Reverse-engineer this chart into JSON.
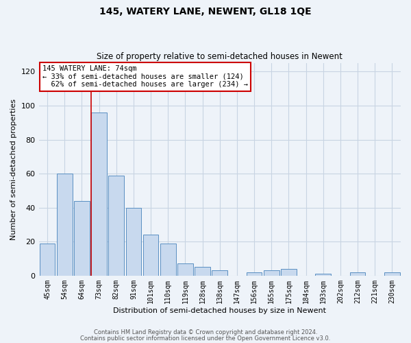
{
  "title": "145, WATERY LANE, NEWENT, GL18 1QE",
  "subtitle": "Size of property relative to semi-detached houses in Newent",
  "xlabel": "Distribution of semi-detached houses by size in Newent",
  "ylabel": "Number of semi-detached properties",
  "bin_labels": [
    "45sqm",
    "54sqm",
    "64sqm",
    "73sqm",
    "82sqm",
    "91sqm",
    "101sqm",
    "110sqm",
    "119sqm",
    "128sqm",
    "138sqm",
    "147sqm",
    "156sqm",
    "165sqm",
    "175sqm",
    "184sqm",
    "193sqm",
    "202sqm",
    "212sqm",
    "221sqm",
    "230sqm"
  ],
  "bin_values": [
    19,
    60,
    44,
    96,
    59,
    40,
    24,
    19,
    7,
    5,
    3,
    0,
    2,
    3,
    4,
    0,
    1,
    0,
    2,
    0,
    2
  ],
  "bar_color": "#c8d9ee",
  "bar_edge_color": "#5a8fc2",
  "vline_bin_index": 3,
  "highlight_label": "145 WATERY LANE: 74sqm",
  "pct_smaller": "33%",
  "pct_smaller_count": 124,
  "pct_larger": "62%",
  "pct_larger_count": 234,
  "annotation_box_color": "#ffffff",
  "annotation_box_edge": "#cc0000",
  "vline_color": "#cc0000",
  "ylim": [
    0,
    125
  ],
  "yticks": [
    0,
    20,
    40,
    60,
    80,
    100,
    120
  ],
  "grid_color": "#c8d4e3",
  "bg_color": "#eef3f9",
  "footer1": "Contains HM Land Registry data © Crown copyright and database right 2024.",
  "footer2": "Contains public sector information licensed under the Open Government Licence v3.0."
}
